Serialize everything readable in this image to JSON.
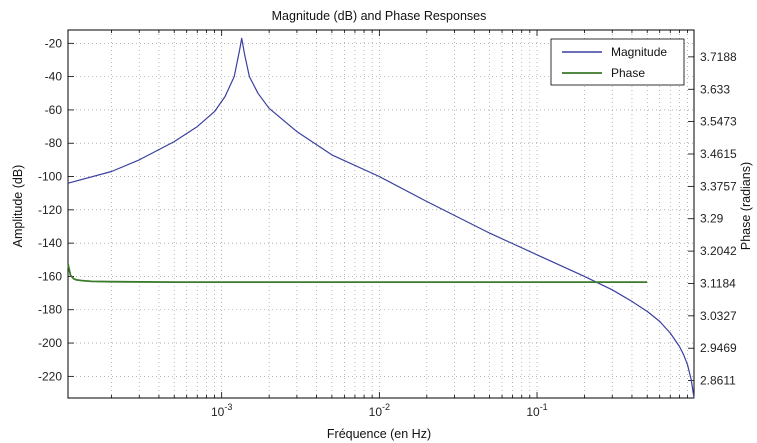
{
  "chart_data": {
    "type": "line",
    "title": "Magnitude (dB) and Phase Responses",
    "xlabel": "Fréquence (en Hz)",
    "ylabel_left": "Amplitude (dB)",
    "ylabel_right": "Phase (radians)",
    "x_scale": "log",
    "xlim": [
      0.000106,
      0.99
    ],
    "ylim_left": [
      -233,
      -12
    ],
    "ylim_right": [
      2.815,
      3.79
    ],
    "x_ticks": [
      {
        "value": 0.001,
        "base": "10",
        "exp": "-3"
      },
      {
        "value": 0.01,
        "base": "10",
        "exp": "-2"
      },
      {
        "value": 0.1,
        "base": "10",
        "exp": "-1"
      }
    ],
    "y_ticks_left": [
      -20,
      -40,
      -60,
      -80,
      -100,
      -120,
      -140,
      -160,
      -180,
      -200,
      -220
    ],
    "y_ticks_right": [
      "3.7188",
      "3.633",
      "3.5473",
      "3.4615",
      "3.3757",
      "3.29",
      "3.2042",
      "3.1184",
      "3.0327",
      "2.9469",
      "2.8611"
    ],
    "grid": true,
    "legend_position": "top-right",
    "series": [
      {
        "name": "Magnitude",
        "axis": "left",
        "color": "#3b3fa0",
        "x": [
          0.000106,
          0.0002,
          0.0003,
          0.0005,
          0.0007,
          0.0009,
          0.00105,
          0.0012,
          0.0013,
          0.00134,
          0.0014,
          0.0015,
          0.0017,
          0.002,
          0.003,
          0.005,
          0.01,
          0.02,
          0.05,
          0.1,
          0.2,
          0.3,
          0.4,
          0.5,
          0.6,
          0.7,
          0.8,
          0.85,
          0.9,
          0.95,
          0.99
        ],
        "y": [
          -104,
          -97,
          -90,
          -79,
          -70,
          -61,
          -52,
          -40,
          -24,
          -17,
          -27,
          -40,
          -50,
          -59,
          -73,
          -87,
          -100,
          -115,
          -134,
          -147,
          -160,
          -168,
          -175,
          -181,
          -187,
          -194,
          -202,
          -207,
          -213,
          -222,
          -233
        ]
      },
      {
        "name": "Phase",
        "axis": "right",
        "color": "#3a7a2a",
        "x": [
          0.000106,
          0.00011,
          0.000115,
          0.00012,
          0.00013,
          0.00015,
          0.0002,
          0.0005,
          0.001,
          0.01,
          0.1,
          0.5
        ],
        "y": [
          3.17,
          3.14,
          3.131,
          3.128,
          3.126,
          3.124,
          3.123,
          3.122,
          3.122,
          3.122,
          3.122,
          3.122
        ]
      }
    ]
  }
}
